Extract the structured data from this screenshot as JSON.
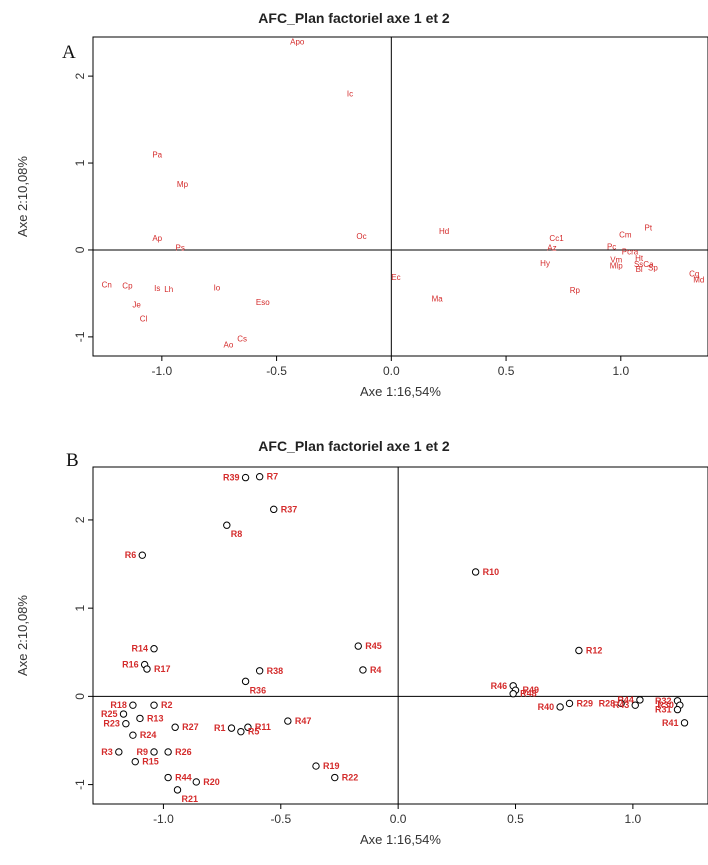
{
  "chart_data": [
    {
      "panel_label": "A",
      "type": "scatter",
      "title": "AFC_Plan factoriel axe 1 et 2",
      "xlabel": "Axe 1:16,54%",
      "ylabel": "Axe 2:10,08%",
      "xlim": [
        -1.3,
        1.38
      ],
      "ylim": [
        -1.22,
        2.45
      ],
      "xticks": [
        "-1.0",
        "-0.5",
        "0.0",
        "0.5",
        "1.0"
      ],
      "xtick_values": [
        -1.0,
        -0.5,
        0.0,
        0.5,
        1.0
      ],
      "yticks": [
        "-1",
        "0",
        "1",
        "2"
      ],
      "ytick_values": [
        -1,
        0,
        1,
        2
      ],
      "marker": "label",
      "label_color": "#d42b2b",
      "points": [
        {
          "label": "Apo",
          "x": -0.41,
          "y": 2.4
        },
        {
          "label": "Ic",
          "x": -0.18,
          "y": 1.8
        },
        {
          "label": "Pa",
          "x": -1.02,
          "y": 1.1
        },
        {
          "label": "Mp",
          "x": -0.91,
          "y": 0.76
        },
        {
          "label": "Ap",
          "x": -1.02,
          "y": 0.14
        },
        {
          "label": "Ps",
          "x": -0.92,
          "y": 0.03
        },
        {
          "label": "Oc",
          "x": -0.13,
          "y": 0.16
        },
        {
          "label": "Hd",
          "x": 0.23,
          "y": 0.22
        },
        {
          "label": "Cc1",
          "x": 0.72,
          "y": 0.14
        },
        {
          "label": "Az",
          "x": 0.7,
          "y": 0.03
        },
        {
          "label": "Pc",
          "x": 0.96,
          "y": 0.04
        },
        {
          "label": "Cm",
          "x": 1.02,
          "y": 0.18
        },
        {
          "label": "Pt",
          "x": 1.12,
          "y": 0.26
        },
        {
          "label": "Pcra",
          "x": 1.04,
          "y": -0.02
        },
        {
          "label": "Hy",
          "x": 0.67,
          "y": -0.15
        },
        {
          "label": "Vm",
          "x": 0.98,
          "y": -0.11
        },
        {
          "label": "Ht",
          "x": 1.08,
          "y": -0.09
        },
        {
          "label": "Mlp",
          "x": 0.98,
          "y": -0.18
        },
        {
          "label": "SsCa",
          "x": 1.1,
          "y": -0.16
        },
        {
          "label": "Bl",
          "x": 1.08,
          "y": -0.22
        },
        {
          "label": "Sp",
          "x": 1.14,
          "y": -0.2
        },
        {
          "label": "Cg",
          "x": 1.32,
          "y": -0.27
        },
        {
          "label": "Md",
          "x": 1.34,
          "y": -0.34
        },
        {
          "label": "Ec",
          "x": 0.02,
          "y": -0.31
        },
        {
          "label": "Rp",
          "x": 0.8,
          "y": -0.46
        },
        {
          "label": "Ma",
          "x": 0.2,
          "y": -0.56
        },
        {
          "label": "Cn",
          "x": -1.24,
          "y": -0.4
        },
        {
          "label": "Cp",
          "x": -1.15,
          "y": -0.41
        },
        {
          "label": "Is",
          "x": -1.02,
          "y": -0.44
        },
        {
          "label": "Lh",
          "x": -0.97,
          "y": -0.45
        },
        {
          "label": "Io",
          "x": -0.76,
          "y": -0.43
        },
        {
          "label": "Je",
          "x": -1.11,
          "y": -0.63
        },
        {
          "label": "Eso",
          "x": -0.56,
          "y": -0.6
        },
        {
          "label": "Cl",
          "x": -1.08,
          "y": -0.79
        },
        {
          "label": "Cs",
          "x": -0.65,
          "y": -1.02
        },
        {
          "label": "Ao",
          "x": -0.71,
          "y": -1.09
        }
      ]
    },
    {
      "panel_label": "B",
      "type": "scatter",
      "title": "AFC_Plan factoriel axe 1 et 2",
      "xlabel": "Axe 1:16,54%",
      "ylabel": "Axe 2:10,08%",
      "xlim": [
        -1.3,
        1.32
      ],
      "ylim": [
        -1.22,
        2.6
      ],
      "xticks": [
        "-1.0",
        "-0.5",
        "0.0",
        "0.5",
        "1.0"
      ],
      "xtick_values": [
        -1.0,
        -0.5,
        0.0,
        0.5,
        1.0
      ],
      "yticks": [
        "-1",
        "0",
        "1",
        "2"
      ],
      "ytick_values": [
        -1,
        0,
        1,
        2
      ],
      "marker": "open-circle",
      "label_color": "#d42b2b",
      "points": [
        {
          "label": "R39",
          "x": -0.65,
          "y": 2.48,
          "label_side": "left"
        },
        {
          "label": "R7",
          "x": -0.59,
          "y": 2.49,
          "label_side": "right"
        },
        {
          "label": "R37",
          "x": -0.53,
          "y": 2.12,
          "label_side": "right"
        },
        {
          "label": "R8",
          "x": -0.73,
          "y": 1.94,
          "label_side": "right-below"
        },
        {
          "label": "R6",
          "x": -1.09,
          "y": 1.6,
          "label_side": "left"
        },
        {
          "label": "R10",
          "x": 0.33,
          "y": 1.41,
          "label_side": "right"
        },
        {
          "label": "R14",
          "x": -1.04,
          "y": 0.54,
          "label_side": "left"
        },
        {
          "label": "R12",
          "x": 0.77,
          "y": 0.52,
          "label_side": "right"
        },
        {
          "label": "R45",
          "x": -0.17,
          "y": 0.57,
          "label_side": "right"
        },
        {
          "label": "R16",
          "x": -1.08,
          "y": 0.36,
          "label_side": "left"
        },
        {
          "label": "R17",
          "x": -1.07,
          "y": 0.31,
          "label_side": "right"
        },
        {
          "label": "R38",
          "x": -0.59,
          "y": 0.29,
          "label_side": "right"
        },
        {
          "label": "R4",
          "x": -0.15,
          "y": 0.3,
          "label_side": "right"
        },
        {
          "label": "R36",
          "x": -0.65,
          "y": 0.17,
          "label_side": "right-below"
        },
        {
          "label": "R46",
          "x": 0.49,
          "y": 0.12,
          "label_side": "left"
        },
        {
          "label": "R49",
          "x": 0.5,
          "y": 0.07,
          "label_side": "right"
        },
        {
          "label": "R48",
          "x": 0.49,
          "y": 0.03,
          "label_side": "right"
        },
        {
          "label": "R18",
          "x": -1.13,
          "y": -0.1,
          "label_side": "left"
        },
        {
          "label": "R2",
          "x": -1.04,
          "y": -0.1,
          "label_side": "right"
        },
        {
          "label": "R25",
          "x": -1.17,
          "y": -0.2,
          "label_side": "left"
        },
        {
          "label": "R13",
          "x": -1.1,
          "y": -0.25,
          "label_side": "right"
        },
        {
          "label": "R23",
          "x": -1.16,
          "y": -0.31,
          "label_side": "left"
        },
        {
          "label": "R27",
          "x": -0.95,
          "y": -0.35,
          "label_side": "right"
        },
        {
          "label": "R1",
          "x": -0.71,
          "y": -0.36,
          "label_side": "left"
        },
        {
          "label": "R11",
          "x": -0.64,
          "y": -0.35,
          "label_side": "right"
        },
        {
          "label": "R5",
          "x": -0.67,
          "y": -0.4,
          "label_side": "right"
        },
        {
          "label": "R47",
          "x": -0.47,
          "y": -0.28,
          "label_side": "right"
        },
        {
          "label": "R24",
          "x": -1.13,
          "y": -0.44,
          "label_side": "right"
        },
        {
          "label": "R9",
          "x": -1.04,
          "y": -0.63,
          "label_side": "left"
        },
        {
          "label": "R26",
          "x": -0.98,
          "y": -0.63,
          "label_side": "right"
        },
        {
          "label": "R3",
          "x": -1.19,
          "y": -0.63,
          "label_side": "left"
        },
        {
          "label": "R15",
          "x": -1.12,
          "y": -0.74,
          "label_side": "right"
        },
        {
          "label": "R40",
          "x": 0.69,
          "y": -0.12,
          "label_side": "left"
        },
        {
          "label": "R29",
          "x": 0.73,
          "y": -0.08,
          "label_side": "right"
        },
        {
          "label": "R28",
          "x": 0.95,
          "y": -0.08,
          "label_side": "left"
        },
        {
          "label": "R44",
          "x": 1.03,
          "y": -0.04,
          "label_side": "left"
        },
        {
          "label": "R43",
          "x": 1.01,
          "y": -0.1,
          "label_side": "left"
        },
        {
          "label": "R32",
          "x": 1.19,
          "y": -0.05,
          "label_side": "left"
        },
        {
          "label": "R30",
          "x": 1.2,
          "y": -0.1,
          "label_side": "left"
        },
        {
          "label": "R31",
          "x": 1.19,
          "y": -0.15,
          "label_side": "left"
        },
        {
          "label": "R41",
          "x": 1.22,
          "y": -0.3,
          "label_side": "left"
        },
        {
          "label": "R19",
          "x": -0.35,
          "y": -0.79,
          "label_side": "right"
        },
        {
          "label": "R22",
          "x": -0.27,
          "y": -0.92,
          "label_side": "right"
        },
        {
          "label": "R44",
          "x": -0.98,
          "y": -0.92,
          "label_side": "right"
        },
        {
          "label": "R20",
          "x": -0.86,
          "y": -0.97,
          "label_side": "right"
        },
        {
          "label": "R21",
          "x": -0.94,
          "y": -1.06,
          "label_side": "right-below"
        }
      ]
    }
  ]
}
